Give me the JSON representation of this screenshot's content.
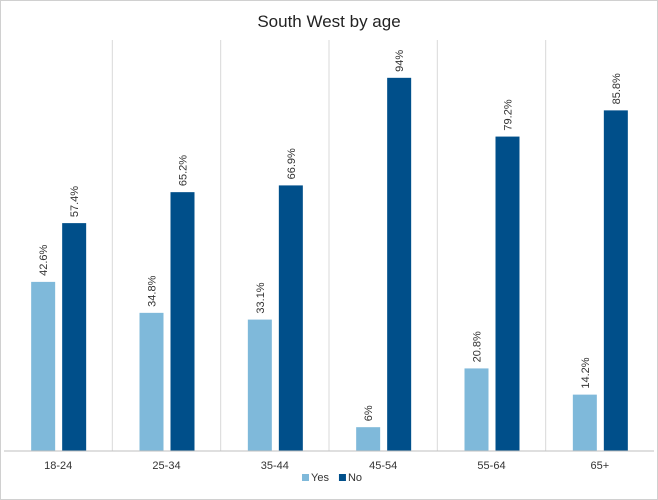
{
  "chart_data": {
    "type": "bar",
    "title": "South West by age",
    "categories": [
      "18-24",
      "25-34",
      "35-44",
      "45-54",
      "55-64",
      "65+"
    ],
    "series": [
      {
        "name": "Yes",
        "color": "#7fb9da",
        "values": [
          42.6,
          34.8,
          33.1,
          6,
          20.8,
          14.2
        ],
        "labels": [
          "42.6%",
          "34.8%",
          "33.1%",
          "6%",
          "20.8%",
          "14.2%"
        ]
      },
      {
        "name": "No",
        "color": "#004f8a",
        "values": [
          57.4,
          65.2,
          66.9,
          94,
          79.2,
          85.8
        ],
        "labels": [
          "57.4%",
          "65.2%",
          "66.9%",
          "94%",
          "79.2%",
          "85.8%"
        ]
      }
    ],
    "ylim": [
      0,
      100
    ],
    "grid": "vertical-separators",
    "legend": "bottom"
  }
}
